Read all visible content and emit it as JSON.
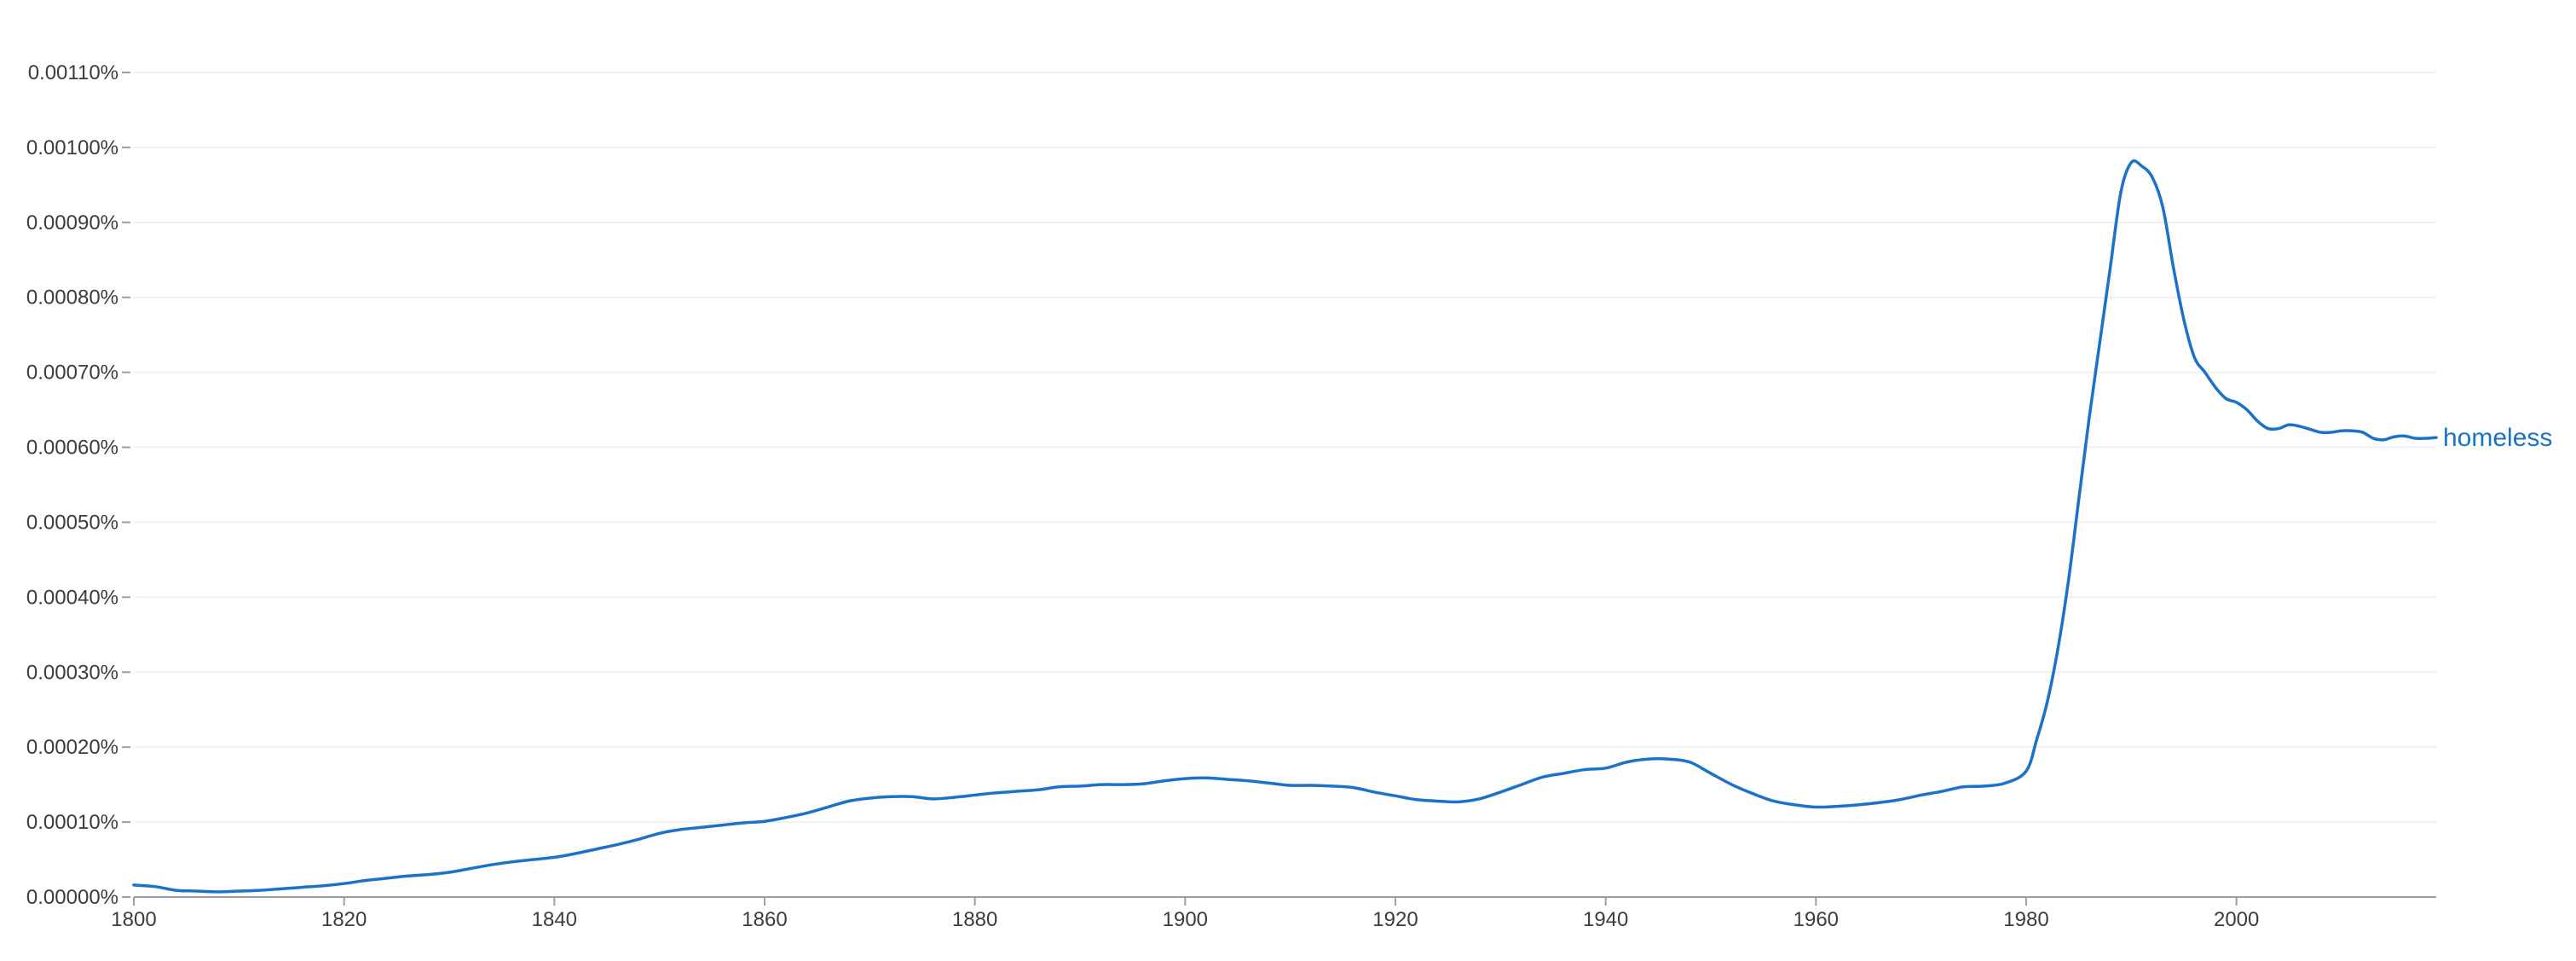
{
  "colors": {
    "series": "#1a73c8",
    "grid": "#f1f1f1",
    "axis": "#9e9e9e",
    "tick_text": "#3c3c3c"
  },
  "chart_data": {
    "type": "line",
    "title": "",
    "xlabel": "",
    "ylabel": "",
    "xlim": [
      1800,
      2019
    ],
    "ylim": [
      0,
      0.0011
    ],
    "grid": true,
    "legend": "end-of-line label",
    "x_ticks": [
      1800,
      1820,
      1840,
      1860,
      1880,
      1900,
      1920,
      1940,
      1960,
      1980,
      2000
    ],
    "x_tick_labels": [
      "1800",
      "1820",
      "1840",
      "1860",
      "1880",
      "1900",
      "1920",
      "1940",
      "1960",
      "1980",
      "2000"
    ],
    "y_ticks": [
      0,
      0.0001,
      0.0002,
      0.0003,
      0.0004,
      0.0005,
      0.0006,
      0.0007,
      0.0008,
      0.0009,
      0.001,
      0.0011
    ],
    "y_tick_labels": [
      "0.00000%",
      "0.00010%",
      "0.00020%",
      "0.00030%",
      "0.00040%",
      "0.00050%",
      "0.00060%",
      "0.00070%",
      "0.00080%",
      "0.00090%",
      "0.00100%",
      "0.00110%"
    ],
    "series": [
      {
        "name": "homeless",
        "points": [
          [
            1800,
            1.6e-05
          ],
          [
            1802,
            1.4e-05
          ],
          [
            1804,
            9e-06
          ],
          [
            1806,
            8e-06
          ],
          [
            1808,
            7e-06
          ],
          [
            1810,
            8e-06
          ],
          [
            1812,
            9e-06
          ],
          [
            1814,
            1.1e-05
          ],
          [
            1816,
            1.3e-05
          ],
          [
            1818,
            1.5e-05
          ],
          [
            1820,
            1.8e-05
          ],
          [
            1822,
            2.2e-05
          ],
          [
            1824,
            2.5e-05
          ],
          [
            1826,
            2.8e-05
          ],
          [
            1828,
            3e-05
          ],
          [
            1830,
            3.3e-05
          ],
          [
            1832,
            3.8e-05
          ],
          [
            1834,
            4.3e-05
          ],
          [
            1836,
            4.7e-05
          ],
          [
            1838,
            5e-05
          ],
          [
            1840,
            5.3e-05
          ],
          [
            1842,
            5.8e-05
          ],
          [
            1844,
            6.4e-05
          ],
          [
            1846,
            7e-05
          ],
          [
            1848,
            7.7e-05
          ],
          [
            1850,
            8.5e-05
          ],
          [
            1852,
            9e-05
          ],
          [
            1854,
            9.3e-05
          ],
          [
            1856,
            9.6e-05
          ],
          [
            1858,
            9.9e-05
          ],
          [
            1860,
            0.000101
          ],
          [
            1862,
            0.000106
          ],
          [
            1864,
            0.000112
          ],
          [
            1866,
            0.00012
          ],
          [
            1868,
            0.000128
          ],
          [
            1870,
            0.000132
          ],
          [
            1872,
            0.000134
          ],
          [
            1874,
            0.000134
          ],
          [
            1876,
            0.000131
          ],
          [
            1878,
            0.000133
          ],
          [
            1880,
            0.000136
          ],
          [
            1882,
            0.000139
          ],
          [
            1884,
            0.000141
          ],
          [
            1886,
            0.000143
          ],
          [
            1888,
            0.000147
          ],
          [
            1890,
            0.000148
          ],
          [
            1892,
            0.00015
          ],
          [
            1894,
            0.00015
          ],
          [
            1896,
            0.000151
          ],
          [
            1898,
            0.000155
          ],
          [
            1900,
            0.000158
          ],
          [
            1902,
            0.000159
          ],
          [
            1904,
            0.000157
          ],
          [
            1906,
            0.000155
          ],
          [
            1908,
            0.000152
          ],
          [
            1910,
            0.000149
          ],
          [
            1912,
            0.000149
          ],
          [
            1914,
            0.000148
          ],
          [
            1916,
            0.000146
          ],
          [
            1918,
            0.00014
          ],
          [
            1920,
            0.000135
          ],
          [
            1922,
            0.00013
          ],
          [
            1924,
            0.000128
          ],
          [
            1926,
            0.000127
          ],
          [
            1928,
            0.000131
          ],
          [
            1930,
            0.00014
          ],
          [
            1932,
            0.00015
          ],
          [
            1934,
            0.00016
          ],
          [
            1936,
            0.000165
          ],
          [
            1938,
            0.00017
          ],
          [
            1940,
            0.000172
          ],
          [
            1942,
            0.00018
          ],
          [
            1944,
            0.000184
          ],
          [
            1946,
            0.000184
          ],
          [
            1948,
            0.00018
          ],
          [
            1950,
            0.000165
          ],
          [
            1952,
            0.00015
          ],
          [
            1954,
            0.000138
          ],
          [
            1956,
            0.000128
          ],
          [
            1958,
            0.000123
          ],
          [
            1960,
            0.00012
          ],
          [
            1962,
            0.000121
          ],
          [
            1964,
            0.000123
          ],
          [
            1966,
            0.000126
          ],
          [
            1968,
            0.00013
          ],
          [
            1970,
            0.000136
          ],
          [
            1972,
            0.000141
          ],
          [
            1974,
            0.000147
          ],
          [
            1976,
            0.000148
          ],
          [
            1978,
            0.000152
          ],
          [
            1980,
            0.000168
          ],
          [
            1981,
            0.00021
          ],
          [
            1982,
            0.00026
          ],
          [
            1983,
            0.00033
          ],
          [
            1984,
            0.00042
          ],
          [
            1985,
            0.00053
          ],
          [
            1986,
            0.00064
          ],
          [
            1987,
            0.00074
          ],
          [
            1988,
            0.00084
          ],
          [
            1989,
            0.00094
          ],
          [
            1990,
            0.00098
          ],
          [
            1991,
            0.000975
          ],
          [
            1992,
            0.00096
          ],
          [
            1993,
            0.00092
          ],
          [
            1994,
            0.00084
          ],
          [
            1995,
            0.00077
          ],
          [
            1996,
            0.00072
          ],
          [
            1997,
            0.0007
          ],
          [
            1998,
            0.00068
          ],
          [
            1999,
            0.000665
          ],
          [
            2000,
            0.00066
          ],
          [
            2001,
            0.00065
          ],
          [
            2002,
            0.000635
          ],
          [
            2003,
            0.000625
          ],
          [
            2004,
            0.000625
          ],
          [
            2005,
            0.00063
          ],
          [
            2006,
            0.000628
          ],
          [
            2007,
            0.000624
          ],
          [
            2008,
            0.00062
          ],
          [
            2009,
            0.00062
          ],
          [
            2010,
            0.000622
          ],
          [
            2011,
            0.000622
          ],
          [
            2012,
            0.00062
          ],
          [
            2013,
            0.000612
          ],
          [
            2014,
            0.00061
          ],
          [
            2015,
            0.000614
          ],
          [
            2016,
            0.000615
          ],
          [
            2017,
            0.000612
          ],
          [
            2018,
            0.000612
          ],
          [
            2019,
            0.000613
          ]
        ]
      }
    ]
  }
}
